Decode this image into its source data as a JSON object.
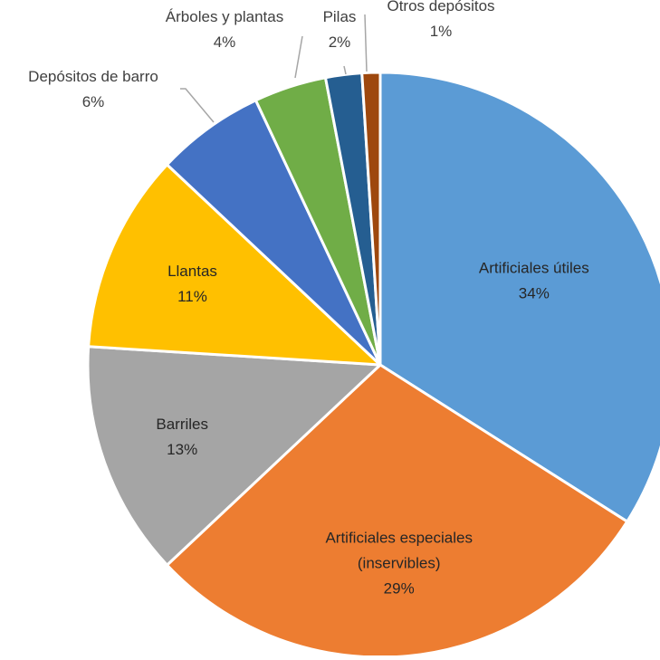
{
  "chart_data": {
    "type": "pie",
    "title": "",
    "slices": [
      {
        "label": "Artificiales útiles",
        "value": 34,
        "value_label": "34%",
        "color": "#5B9BD5"
      },
      {
        "label": "Artificiales especiales (inservibles)",
        "label_lines": [
          "Artificiales especiales",
          "(inservibles)"
        ],
        "value": 29,
        "value_label": "29%",
        "color": "#ED7D31"
      },
      {
        "label": "Barriles",
        "value": 13,
        "value_label": "13%",
        "color": "#A5A5A5"
      },
      {
        "label": "Llantas",
        "value": 11,
        "value_label": "11%",
        "color": "#FFC000"
      },
      {
        "label": "Depósitos de barro",
        "value": 6,
        "value_label": "6%",
        "color": "#4472C4"
      },
      {
        "label": "Árboles y plantas",
        "value": 4,
        "value_label": "4%",
        "color": "#70AD47"
      },
      {
        "label": "Pilas",
        "value": 2,
        "value_label": "2%",
        "color": "#255E91"
      },
      {
        "label": "Otros depósitos",
        "value": 1,
        "value_label": "1%",
        "color": "#9E480E"
      }
    ],
    "legend": "none"
  }
}
